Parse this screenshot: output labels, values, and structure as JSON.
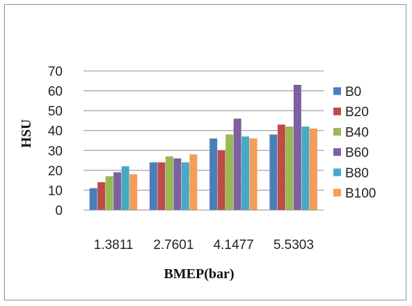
{
  "chart_data": {
    "type": "bar",
    "ylabel": "HSU",
    "xlabel": "BMEP(bar)",
    "categories": [
      "1.3811",
      "2.7601",
      "4.1477",
      "5.5303"
    ],
    "ylim": [
      0,
      70
    ],
    "yticks": [
      0,
      10,
      20,
      30,
      40,
      50,
      60,
      70
    ],
    "grid": true,
    "legend_position": "right",
    "series": [
      {
        "name": "B0",
        "color": "#4a7ebb",
        "values": [
          11,
          24,
          36,
          38
        ]
      },
      {
        "name": "B20",
        "color": "#be4b48",
        "values": [
          14,
          24,
          30,
          43
        ]
      },
      {
        "name": "B40",
        "color": "#98b954",
        "values": [
          17,
          27,
          38,
          42
        ]
      },
      {
        "name": "B60",
        "color": "#7d60a0",
        "values": [
          19,
          26,
          46,
          63
        ]
      },
      {
        "name": "B80",
        "color": "#46aac5",
        "values": [
          22,
          24,
          37,
          42
        ]
      },
      {
        "name": "B100",
        "color": "#f59d56",
        "values": [
          18,
          28,
          36,
          41
        ]
      }
    ]
  }
}
